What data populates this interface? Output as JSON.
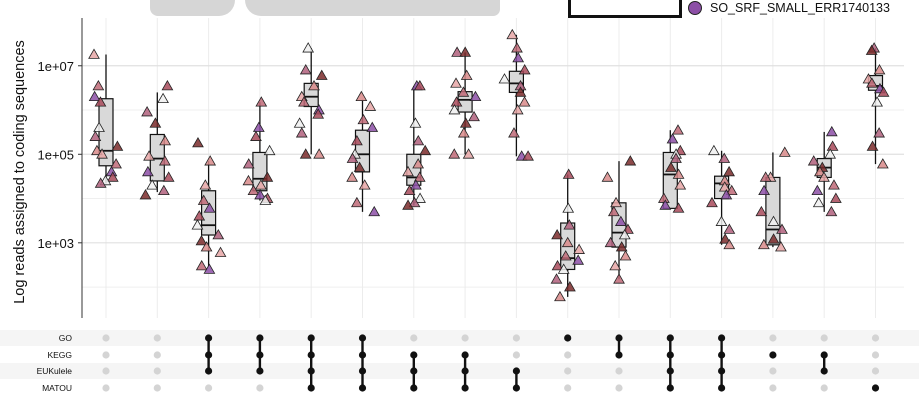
{
  "legend": {
    "label": "SO_SRF_SMALL_ERR1740133",
    "color": "#8c4fa6"
  },
  "chart_data": {
    "type": "box",
    "ylabel": "Log reads assigned to coding sequences",
    "yscale": "log",
    "ylim": [
      20,
      120000000
    ],
    "yticks": [
      1000,
      100000,
      10000000
    ],
    "ytick_labels": [
      "1e+03",
      "1e+05",
      "1e+07"
    ],
    "grid": true,
    "sets": [
      "GO",
      "KEGG",
      "EUKulele",
      "MATOU"
    ],
    "groups": [
      {
        "members": [],
        "q1": 55000,
        "median": 120000,
        "q3": 1800000,
        "wlow": 22000,
        "whigh": 18000000,
        "points": [
          18000000,
          3500000,
          2000000,
          1500000,
          400000,
          250000,
          150000,
          120000,
          100000,
          60000,
          40000,
          30000,
          25000,
          22000
        ]
      },
      {
        "members": [],
        "q1": 25000,
        "median": 80000,
        "q3": 280000,
        "wlow": 14000,
        "whigh": 2500000,
        "points": [
          3500000,
          1800000,
          900000,
          500000,
          200000,
          90000,
          70000,
          40000,
          30000,
          20000,
          15000,
          12000
        ]
      },
      {
        "members": [
          "GO",
          "KEGG",
          "EUKulele"
        ],
        "q1": 1500,
        "median": 2500,
        "q3": 15000,
        "wlow": 300,
        "whigh": 70000,
        "points": [
          180000,
          70000,
          20000,
          9000,
          6000,
          4000,
          2500,
          1500,
          1100,
          800,
          600,
          300,
          250
        ]
      },
      {
        "members": [
          "GO",
          "KEGG",
          "EUKulele"
        ],
        "q1": 15000,
        "median": 28000,
        "q3": 110000,
        "wlow": 9000,
        "whigh": 1500000,
        "points": [
          1500000,
          400000,
          250000,
          120000,
          60000,
          30000,
          25000,
          20000,
          15000,
          12000,
          10000,
          9000
        ]
      },
      {
        "members": [
          "GO",
          "KEGG",
          "EUKulele",
          "MATOU"
        ],
        "q1": 1200000,
        "median": 2000000,
        "q3": 4000000,
        "wlow": 100000,
        "whigh": 25000000,
        "points": [
          25000000,
          8000000,
          6000000,
          3500000,
          2000000,
          1500000,
          1000000,
          800000,
          500000,
          300000,
          100000,
          100000
        ]
      },
      {
        "members": [
          "GO",
          "KEGG",
          "EUKulele",
          "MATOU"
        ],
        "q1": 40000,
        "median": 100000,
        "q3": 350000,
        "wlow": 5000,
        "whigh": 1700000,
        "points": [
          2000000,
          1200000,
          600000,
          400000,
          200000,
          100000,
          80000,
          50000,
          30000,
          20000,
          8000,
          5000
        ]
      },
      {
        "members": [
          "KEGG",
          "EUKulele",
          "MATOU"
        ],
        "q1": 20000,
        "median": 30000,
        "q3": 100000,
        "wlow": 7000,
        "whigh": 3500000,
        "points": [
          3500000,
          3500000,
          500000,
          200000,
          120000,
          60000,
          40000,
          30000,
          20000,
          15000,
          10000,
          8000,
          7000
        ]
      },
      {
        "members": [
          "KEGG",
          "EUKulele",
          "MATOU"
        ],
        "q1": 900000,
        "median": 1700000,
        "q3": 2600000,
        "wlow": 100000,
        "whigh": 20000000,
        "points": [
          20000000,
          20000000,
          6000000,
          4000000,
          2500000,
          2000000,
          1500000,
          1000000,
          700000,
          500000,
          300000,
          100000,
          100000
        ]
      },
      {
        "members": [
          "EUKulele",
          "MATOU"
        ],
        "q1": 2500000,
        "median": 4000000,
        "q3": 7500000,
        "wlow": 90000,
        "whigh": 50000000,
        "points": [
          50000000,
          25000000,
          15000000,
          8000000,
          5000000,
          3500000,
          2500000,
          1500000,
          1000000,
          300000,
          90000,
          90000
        ]
      },
      {
        "members": [
          "GO"
        ],
        "q1": 250,
        "median": 450,
        "q3": 2800,
        "wlow": 60,
        "whigh": 35000,
        "points": [
          35000,
          6000,
          2500,
          1500,
          1000,
          700,
          500,
          400,
          300,
          250,
          150,
          100,
          60
        ]
      },
      {
        "members": [
          "GO",
          "KEGG"
        ],
        "q1": 800,
        "median": 1700,
        "q3": 8000,
        "wlow": 150,
        "whigh": 70000,
        "points": [
          70000,
          30000,
          8000,
          5000,
          3000,
          2000,
          1500,
          1000,
          800,
          500,
          300,
          150
        ]
      },
      {
        "members": [
          "GO",
          "KEGG",
          "EUKulele",
          "MATOU"
        ],
        "q1": 6000,
        "median": 35000,
        "q3": 110000,
        "wlow": 6000,
        "whigh": 350000,
        "points": [
          350000,
          220000,
          120000,
          100000,
          80000,
          50000,
          35000,
          20000,
          10000,
          7000,
          6000
        ]
      },
      {
        "members": [
          "GO",
          "KEGG",
          "EUKulele",
          "MATOU"
        ],
        "q1": 10000,
        "median": 22000,
        "q3": 32000,
        "wlow": 900,
        "whigh": 120000,
        "points": [
          120000,
          80000,
          40000,
          25000,
          18000,
          15000,
          12000,
          8000,
          3000,
          2000,
          1200,
          900
        ]
      },
      {
        "members": [
          "KEGG"
        ],
        "q1": 900,
        "median": 2000,
        "q3": 30000,
        "wlow": 800,
        "whigh": 110000,
        "points": [
          110000,
          30000,
          30000,
          15000,
          5000,
          3000,
          2000,
          1200,
          900,
          800
        ]
      },
      {
        "members": [
          "KEGG",
          "EUKulele"
        ],
        "q1": 30000,
        "median": 50000,
        "q3": 80000,
        "wlow": 5000,
        "whigh": 320000,
        "points": [
          320000,
          150000,
          100000,
          70000,
          50000,
          40000,
          30000,
          20000,
          15000,
          10000,
          8000,
          5000
        ]
      },
      {
        "members": [
          "MATOU"
        ],
        "q1": 2800000,
        "median": 3500000,
        "q3": 6000000,
        "wlow": 60000,
        "whigh": 25000000,
        "points": [
          25000000,
          22000000,
          8000000,
          5000000,
          4000000,
          3000000,
          2500000,
          1500000,
          300000,
          150000,
          60000
        ]
      }
    ]
  }
}
